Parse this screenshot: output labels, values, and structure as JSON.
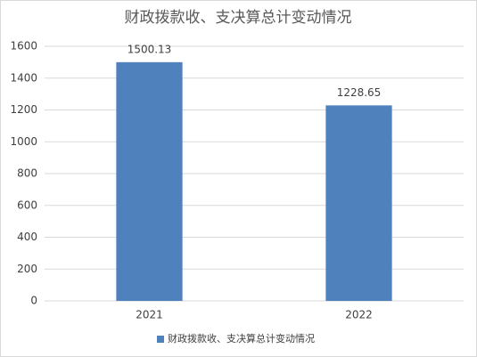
{
  "chart_data": {
    "type": "bar",
    "title": "财政拨款收、支决算总计变动情况",
    "categories": [
      "2021",
      "2022"
    ],
    "series": [
      {
        "name": "财政拨款收、支决算总计变动情况",
        "color": "#4f81bd",
        "values": [
          1500.13,
          1228.65
        ]
      }
    ],
    "ylim": [
      0,
      1600
    ],
    "yticks": [
      0,
      200,
      400,
      600,
      800,
      1000,
      1200,
      1400,
      1600
    ],
    "grid": true,
    "legend": "bottom"
  }
}
